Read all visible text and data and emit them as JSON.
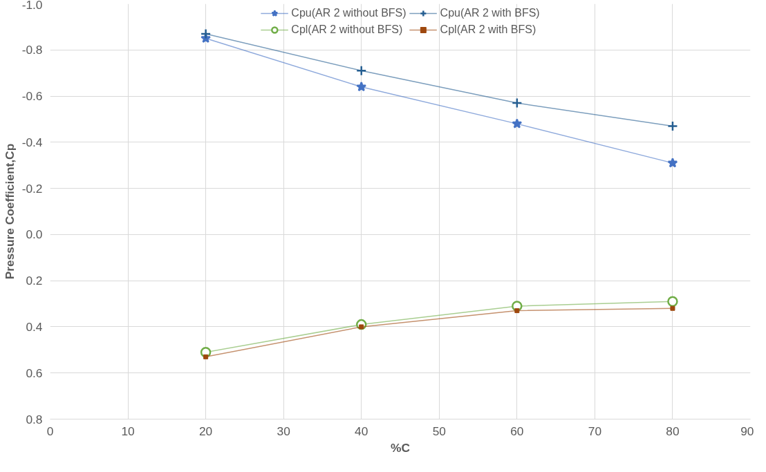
{
  "chart_data": {
    "type": "line",
    "xlabel": "%C",
    "ylabel": "Pressure Coefficient,Cp",
    "x": [
      20,
      40,
      60,
      80
    ],
    "series": [
      {
        "name": "Cpu(AR 2 without BFS)",
        "color": "#4472c4",
        "marker": "star",
        "values": [
          -0.85,
          -0.64,
          -0.48,
          -0.31
        ]
      },
      {
        "name": "Cpl(AR 2 without BFS)",
        "color": "#70ad47",
        "marker": "circle",
        "values": [
          0.51,
          0.39,
          0.31,
          0.29
        ]
      },
      {
        "name": "Cpu(AR 2 with BFS)",
        "color": "#255e91",
        "marker": "cross",
        "values": [
          -0.87,
          -0.71,
          -0.57,
          -0.47
        ]
      },
      {
        "name": "Cpl(AR 2 with BFS)",
        "color": "#9e480e",
        "marker": "square",
        "values": [
          0.53,
          0.4,
          0.33,
          0.32
        ]
      }
    ],
    "xlim": [
      0,
      90
    ],
    "xticks": [
      0,
      10,
      20,
      30,
      40,
      50,
      60,
      70,
      80,
      90
    ],
    "ylim": [
      0.8,
      -1.0
    ],
    "yticks": [
      {
        "value": -1.0,
        "label": "-1.0"
      },
      {
        "value": -0.8,
        "label": "-0.8"
      },
      {
        "value": -0.6,
        "label": "-0.6"
      },
      {
        "value": -0.4,
        "label": "-0.4"
      },
      {
        "value": -0.2,
        "label": "-0.2"
      },
      {
        "value": 0,
        "label": "0.0"
      },
      {
        "value": 0.2,
        "label": "0.2"
      },
      {
        "value": 0.4,
        "label": "0.4"
      },
      {
        "value": 0.6,
        "label": "0.6"
      },
      {
        "value": 0.8,
        "label": "0.8"
      }
    ],
    "grid": true,
    "legend": "top",
    "line_style": "solid"
  }
}
